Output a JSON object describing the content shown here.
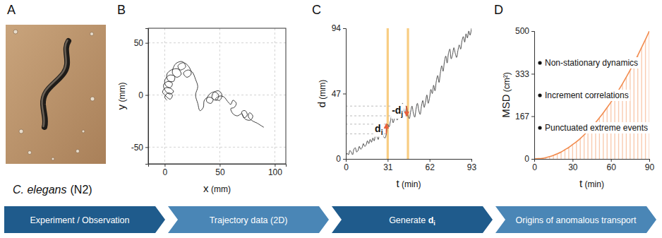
{
  "panel_a": {
    "panel": "A",
    "caption": {
      "species": "C. elegans",
      "strain": "(N2)"
    }
  },
  "chart_data": [
    {
      "panel": "B",
      "type": "line",
      "xlabel": "x (mm)",
      "ylabel": "y (mm)",
      "x": [
        2,
        0,
        3,
        7,
        5,
        1,
        -2,
        1,
        6,
        8,
        4,
        0,
        -1,
        3,
        7,
        5,
        1,
        0,
        4,
        9,
        8,
        3,
        2,
        6,
        12,
        15,
        11,
        7,
        10,
        16,
        19,
        14,
        12,
        17,
        22,
        24,
        20,
        17,
        21,
        25,
        28,
        30,
        28,
        30,
        32,
        35,
        36,
        40,
        44,
        42,
        38,
        40,
        45,
        49,
        47,
        43,
        44,
        49,
        52,
        50,
        46,
        50,
        54,
        57,
        60,
        62,
        65,
        63,
        60,
        62,
        66,
        70,
        72,
        75,
        73,
        70,
        73,
        78,
        80,
        77,
        76,
        80,
        84,
        87,
        90
      ],
      "series": [
        {
          "color": "#2b2b2b",
          "values": [
            -5,
            -2,
            2,
            0,
            -4,
            -1,
            3,
            7,
            6,
            3,
            1,
            5,
            10,
            13,
            11,
            7,
            9,
            14,
            19,
            18,
            13,
            14,
            20,
            24,
            25,
            20,
            17,
            21,
            30,
            32,
            27,
            24,
            28,
            31,
            27,
            20,
            17,
            21,
            24,
            22,
            15,
            8,
            0,
            -8,
            -15,
            -12,
            -5,
            -2,
            -4,
            -8,
            -6,
            0,
            3,
            0,
            -5,
            -3,
            2,
            4,
            0,
            -5,
            -4,
            -1,
            -2,
            -6,
            -9,
            -5,
            -8,
            -12,
            -13,
            -18,
            -20,
            -18,
            -22,
            -19,
            -15,
            -16,
            -23,
            -24,
            -20,
            -17,
            -21,
            -25,
            -27,
            -29,
            -31
          ]
        }
      ],
      "xlim": [
        -15,
        110
      ],
      "xticks": [
        0,
        50,
        100
      ],
      "ylim": [
        -66,
        64
      ],
      "yticks": [
        -50,
        0,
        50
      ],
      "grid": true
    },
    {
      "panel": "C",
      "type": "line",
      "xlabel": "t (min)",
      "ylabel": "d (mm)",
      "x": [
        0,
        1,
        2,
        3,
        4,
        5,
        6,
        7,
        8,
        9,
        10,
        11,
        12,
        13,
        14,
        15,
        16,
        17,
        18,
        19,
        20,
        21,
        22,
        23,
        24,
        25,
        26,
        27,
        28,
        29,
        30,
        31,
        32,
        33,
        34,
        35,
        36,
        37,
        38,
        39,
        40,
        41,
        42,
        43,
        44,
        45,
        46,
        47,
        48,
        49,
        50,
        51,
        52,
        53,
        54,
        55,
        56,
        57,
        58,
        59,
        60,
        61,
        62,
        63,
        64,
        65,
        66,
        67,
        68,
        69,
        70,
        71,
        72,
        73,
        74,
        75,
        76,
        77,
        78,
        79,
        80,
        81,
        82,
        83,
        84,
        85,
        86,
        87,
        88,
        89,
        90,
        91,
        92,
        93
      ],
      "series": [
        {
          "color": "#3a3a3a",
          "values": [
            2,
            4,
            3,
            6,
            5,
            3,
            7,
            8,
            5,
            6,
            9,
            7,
            8,
            11,
            9,
            10,
            13,
            11,
            14,
            12,
            15,
            13,
            17,
            16,
            14,
            19,
            17,
            20,
            16,
            15,
            18,
            25,
            23,
            27,
            31,
            26,
            29,
            33,
            28,
            30,
            34,
            37,
            40,
            35,
            33,
            38,
            31,
            29,
            34,
            38,
            33,
            30,
            36,
            40,
            35,
            32,
            38,
            42,
            37,
            41,
            46,
            40,
            44,
            50,
            47,
            53,
            49,
            56,
            60,
            55,
            62,
            67,
            63,
            70,
            74,
            69,
            76,
            79,
            72,
            75,
            80,
            76,
            73,
            78,
            82,
            79,
            85,
            88,
            84,
            90,
            87,
            92,
            89,
            94
          ]
        }
      ],
      "xlim": [
        0,
        93
      ],
      "xticks": [
        0,
        31,
        62,
        93
      ],
      "ylim": [
        0,
        94
      ],
      "yticks": [
        0,
        47,
        94
      ],
      "bands": [
        31,
        46
      ],
      "annotations": [
        {
          "text": "d",
          "sub": "i",
          "t": 30,
          "from": 18,
          "to": 25
        },
        {
          "text": "-d",
          "sub": "j",
          "t": 45,
          "from": 38,
          "to": 31
        }
      ]
    },
    {
      "panel": "D",
      "type": "area",
      "xlabel": "t (min)",
      "ylabel": "MSD (cm²)",
      "x": [
        0,
        3,
        6,
        9,
        12,
        15,
        18,
        21,
        24,
        27,
        30,
        33,
        36,
        39,
        42,
        45,
        48,
        51,
        54,
        57,
        60,
        63,
        66,
        69,
        72,
        75,
        78,
        81,
        84,
        87,
        90
      ],
      "series": [
        {
          "color": "#f28c4f",
          "values": [
            0,
            1,
            2,
            5,
            9,
            14,
            20,
            27,
            36,
            45,
            56,
            67,
            80,
            94,
            109,
            125,
            142,
            161,
            180,
            201,
            222,
            245,
            269,
            294,
            320,
            347,
            376,
            405,
            436,
            467,
            500
          ]
        }
      ],
      "xlim": [
        0,
        90
      ],
      "xticks": [
        0,
        30,
        60,
        90
      ],
      "ylim": [
        0,
        500
      ],
      "yticks": [
        0,
        167,
        333,
        500
      ],
      "annotations": [
        "Non-stationary dynamics",
        "Increment correlations",
        "Punctuated extreme events"
      ]
    }
  ],
  "banner": [
    {
      "text": "Experiment / Observation"
    },
    {
      "text": "Trajectory data (2D)"
    },
    {
      "text": "Generate ",
      "symbol": "d",
      "sub": "i"
    },
    {
      "text": "Origins of anomalous transport"
    }
  ]
}
